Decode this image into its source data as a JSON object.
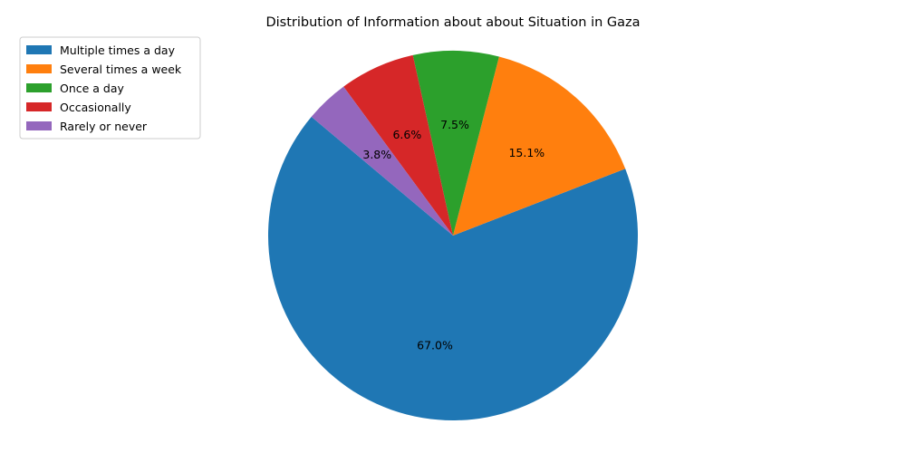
{
  "chart_data": {
    "type": "pie",
    "title": "Distribution of Information about about Situation in Gaza",
    "categories": [
      "Multiple times a day",
      "Several times a week",
      "Once a day",
      "Occasionally",
      "Rarely or never"
    ],
    "values": [
      67.0,
      15.1,
      7.5,
      6.6,
      3.8
    ],
    "labels": [
      "67.0%",
      "15.1%",
      "7.5%",
      "6.6%",
      "3.8%"
    ],
    "colors": [
      "#1f77b4",
      "#ff7f0e",
      "#2ca02c",
      "#d62728",
      "#9467bd"
    ],
    "start_angle_deg": 140,
    "direction": "counterclockwise",
    "legend_position": "upper-left"
  }
}
